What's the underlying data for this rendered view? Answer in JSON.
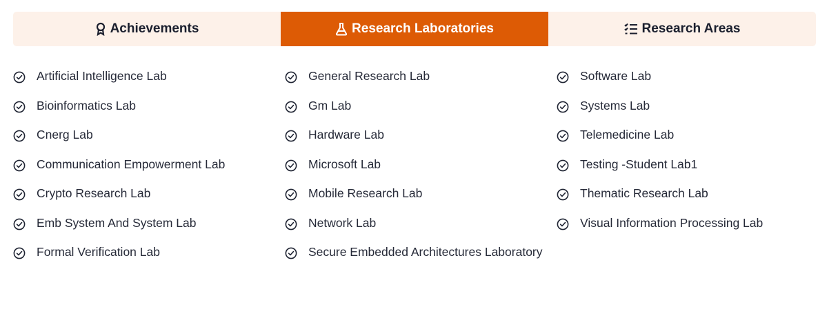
{
  "tabs": [
    {
      "label": "Achievements",
      "icon": "award-ribbon-icon",
      "active": false
    },
    {
      "label": "Research Laboratories",
      "icon": "flask-icon",
      "active": true
    },
    {
      "label": "Research Areas",
      "icon": "checklist-icon",
      "active": false
    }
  ],
  "accent_color": "#dd5b05",
  "tab_bar_bg": "#fdf1e9",
  "labs": {
    "column1": [
      "Artificial Intelligence Lab",
      "Bioinformatics Lab",
      "Cnerg Lab",
      "Communication Empowerment Lab",
      "Crypto Research Lab",
      "Emb System And System Lab",
      "Formal Verification Lab"
    ],
    "column2": [
      "General Research Lab",
      "Gm Lab",
      "Hardware Lab",
      "Microsoft Lab",
      "Mobile Research Lab",
      "Network Lab",
      "Secure Embedded Architectures Laboratory"
    ],
    "column3": [
      "Software Lab",
      "Systems Lab",
      "Telemedicine Lab",
      "Testing -Student Lab1",
      "Thematic Research Lab",
      "Visual Information Processing Lab"
    ]
  },
  "item_icon": "check-circle-icon"
}
